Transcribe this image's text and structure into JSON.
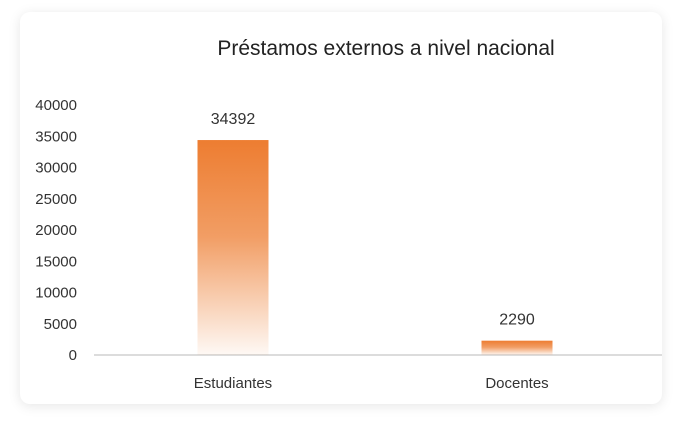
{
  "chart_data": {
    "type": "bar",
    "title": "Préstamos externos a nivel nacional",
    "categories": [
      "Estudiantes",
      "Docentes"
    ],
    "values": [
      34392,
      2290
    ],
    "data_labels": [
      "34392",
      "2290"
    ],
    "ylim": [
      0,
      40000
    ],
    "yticks": [
      0,
      5000,
      10000,
      15000,
      20000,
      25000,
      30000,
      35000,
      40000
    ],
    "ytick_labels": [
      "0",
      "5000",
      "10000",
      "15000",
      "20000",
      "25000",
      "30000",
      "35000",
      "40000"
    ],
    "grid": false,
    "legend": "none",
    "bar_color": "#ED7D31"
  }
}
